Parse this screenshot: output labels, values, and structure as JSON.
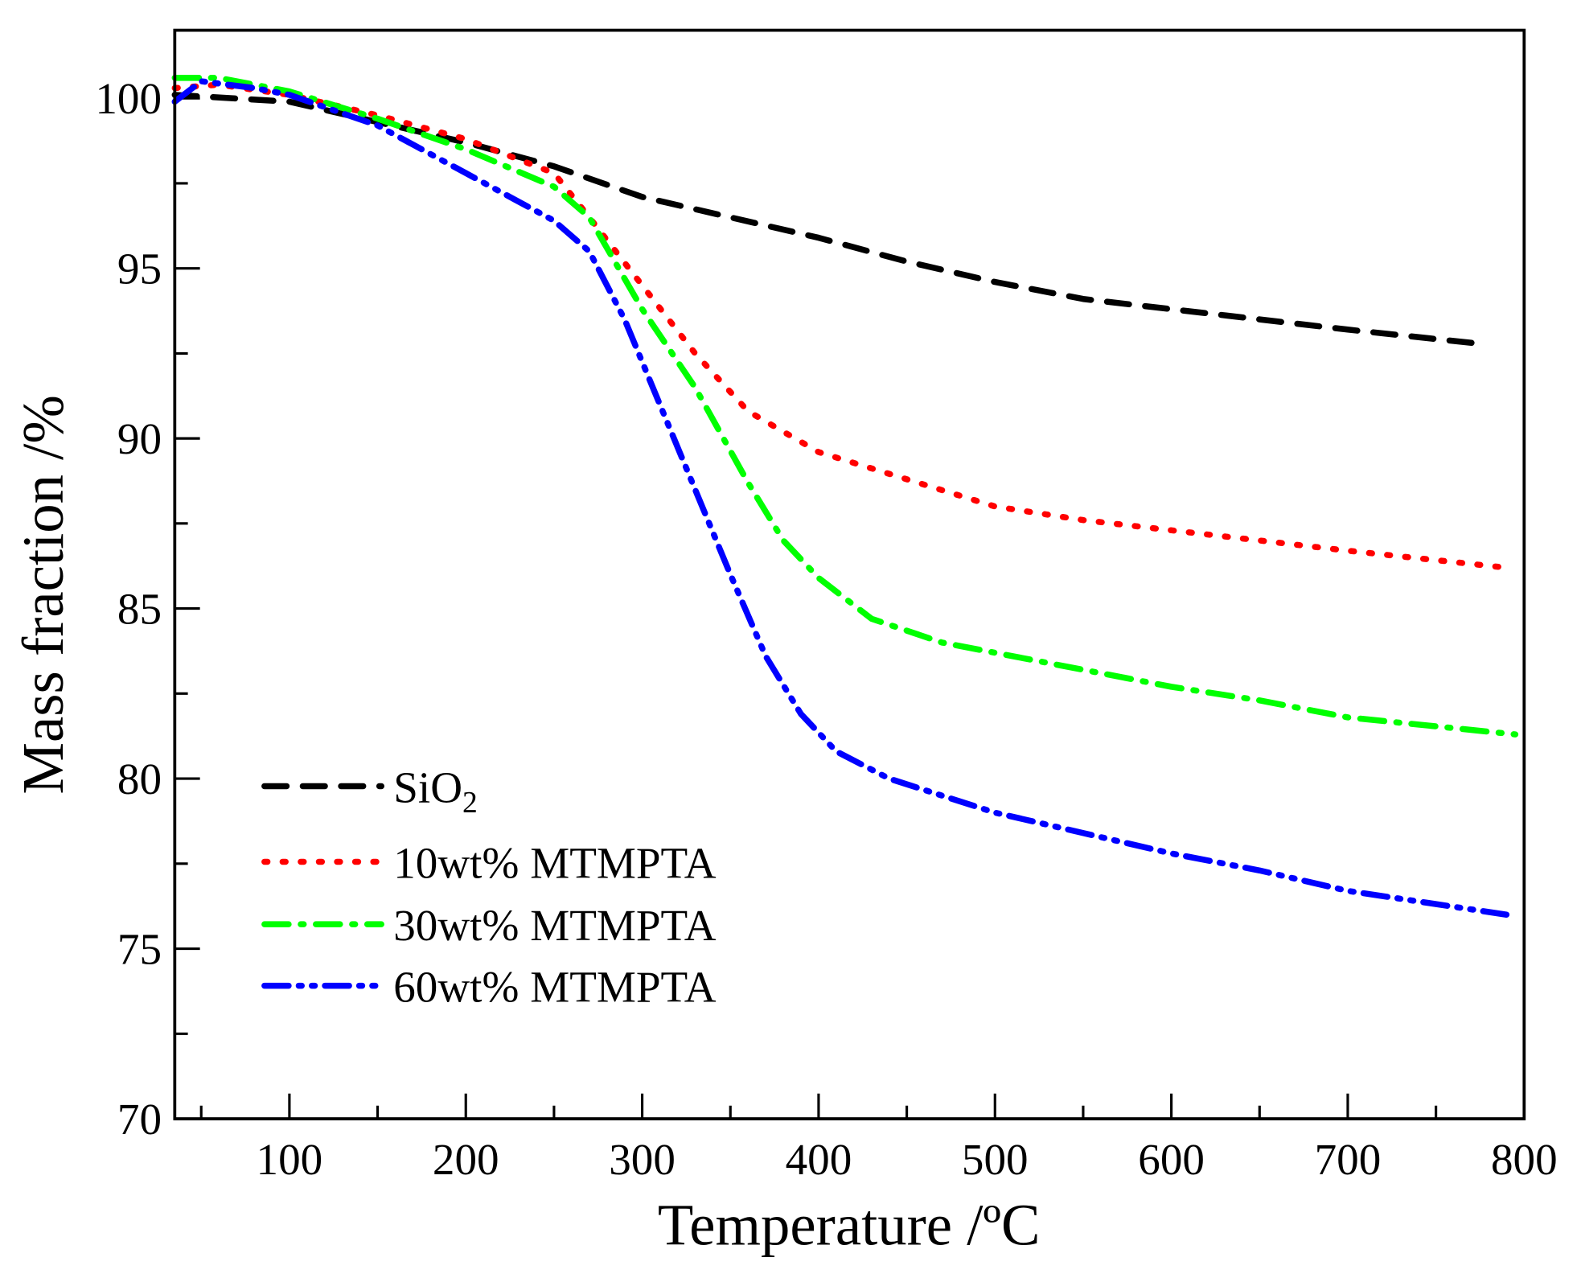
{
  "chart_data": {
    "type": "line",
    "xlabel": "Temperature /ºC",
    "ylabel": "Mass fraction /%",
    "xlim": [
      35,
      800
    ],
    "ylim": [
      70,
      102
    ],
    "xticks": [
      100,
      200,
      300,
      400,
      500,
      600,
      700,
      800
    ],
    "yticks": [
      70,
      75,
      80,
      85,
      90,
      95,
      100
    ],
    "grid": false,
    "legend_position": "bottom-left",
    "series": [
      {
        "name": "SiO",
        "name_sub": "2",
        "color": "#000000",
        "dash": "dash",
        "x": [
          35,
          100,
          200,
          250,
          300,
          350,
          400,
          450,
          500,
          550,
          600,
          650,
          700,
          772
        ],
        "y": [
          100.1,
          99.9,
          98.7,
          98.0,
          97.1,
          96.5,
          95.9,
          95.2,
          94.6,
          94.1,
          93.8,
          93.5,
          93.2,
          92.8
        ]
      },
      {
        "name": "10wt% MTMPTA",
        "color": "#ff0000",
        "dash": "dot",
        "x": [
          35,
          60,
          100,
          150,
          200,
          250,
          270,
          300,
          330,
          360,
          400,
          450,
          500,
          550,
          600,
          650,
          700,
          790
        ],
        "y": [
          100.3,
          100.4,
          100.1,
          99.5,
          98.8,
          97.8,
          96.5,
          94.5,
          92.5,
          90.8,
          89.6,
          88.8,
          88.0,
          87.6,
          87.3,
          87.0,
          86.7,
          86.2
        ]
      },
      {
        "name": "30wt% MTMPTA",
        "color": "#00ff00",
        "dash": "dashdot",
        "x": [
          35,
          60,
          100,
          150,
          200,
          250,
          270,
          300,
          330,
          360,
          380,
          400,
          430,
          470,
          500,
          550,
          600,
          650,
          700,
          795
        ],
        "y": [
          100.6,
          100.6,
          100.2,
          99.4,
          98.5,
          97.4,
          96.5,
          93.8,
          91.5,
          88.7,
          87.0,
          85.9,
          84.7,
          84.0,
          83.7,
          83.2,
          82.7,
          82.3,
          81.8,
          81.3
        ]
      },
      {
        "name": "60wt% MTMPTA",
        "color": "#0000ff",
        "dash": "dashdotdot",
        "x": [
          35,
          50,
          80,
          100,
          150,
          200,
          250,
          270,
          290,
          310,
          330,
          350,
          370,
          390,
          410,
          440,
          500,
          550,
          600,
          650,
          700,
          790
        ],
        "y": [
          99.9,
          100.5,
          100.3,
          100.1,
          99.2,
          97.8,
          96.4,
          95.5,
          93.5,
          91.0,
          88.5,
          86.0,
          83.6,
          81.9,
          80.8,
          80.0,
          79.0,
          78.4,
          77.8,
          77.3,
          76.7,
          76.0
        ]
      }
    ]
  }
}
